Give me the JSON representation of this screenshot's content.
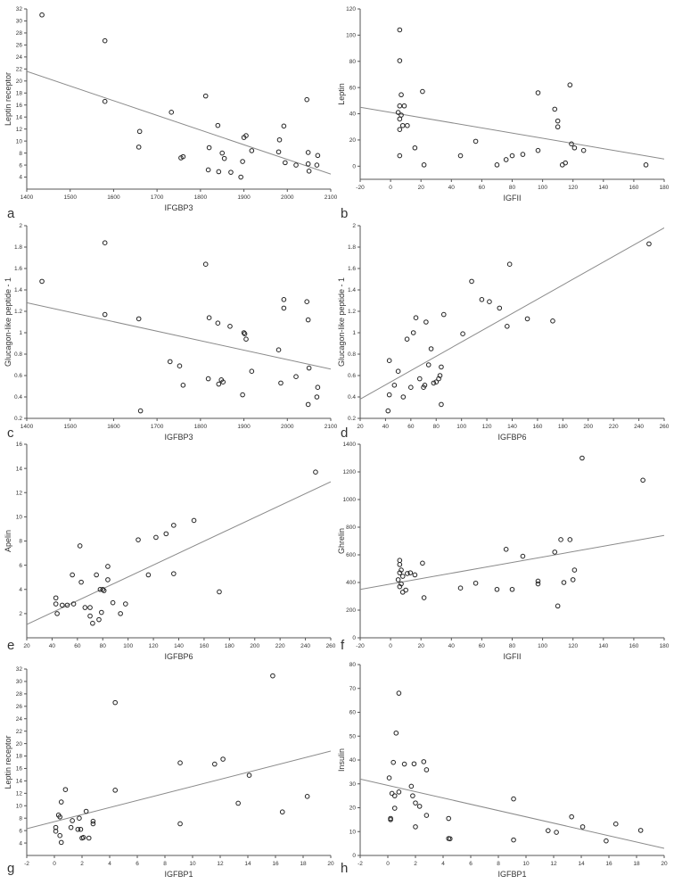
{
  "figure": {
    "colors": {
      "point_stroke": "#222222",
      "line": "#8a8a8a",
      "axis": "#555555",
      "text": "#333333"
    }
  },
  "chart_data": [
    {
      "panel": "a",
      "type": "scatter",
      "xlabel": "IFGBP3",
      "ylabel": "Leptin receptor",
      "xlim": [
        1400,
        2100
      ],
      "ylim": [
        2,
        32
      ],
      "xticks": [
        1400,
        1500,
        1600,
        1700,
        1800,
        1900,
        2000,
        2100
      ],
      "yticks": [
        4,
        6,
        8,
        10,
        12,
        14,
        16,
        18,
        20,
        22,
        24,
        26,
        28,
        30,
        32
      ],
      "fit_line": [
        [
          1400,
          21.6
        ],
        [
          2100,
          4.5
        ]
      ],
      "points": [
        [
          1435,
          31
        ],
        [
          1580,
          26.7
        ],
        [
          1580,
          16.6
        ],
        [
          1660,
          11.6
        ],
        [
          1658,
          9
        ],
        [
          1733,
          14.8
        ],
        [
          1755,
          7.2
        ],
        [
          1760,
          7.4
        ],
        [
          1812,
          17.5
        ],
        [
          1818,
          5.2
        ],
        [
          1820,
          8.9
        ],
        [
          1840,
          12.6
        ],
        [
          1842,
          4.9
        ],
        [
          1850,
          8
        ],
        [
          1855,
          7.1
        ],
        [
          1870,
          4.8
        ],
        [
          1893,
          4
        ],
        [
          1897,
          6.6
        ],
        [
          1900,
          10.6
        ],
        [
          1905,
          10.9
        ],
        [
          1918,
          8.4
        ],
        [
          1980,
          8.2
        ],
        [
          1982,
          10.2
        ],
        [
          1992,
          12.5
        ],
        [
          1995,
          6.4
        ],
        [
          2020,
          6
        ],
        [
          2045,
          16.9
        ],
        [
          2048,
          6.2
        ],
        [
          2048,
          8.1
        ],
        [
          2050,
          5
        ],
        [
          2068,
          6
        ],
        [
          2070,
          7.6
        ]
      ]
    },
    {
      "panel": "b",
      "type": "scatter",
      "xlabel": "IGFII",
      "ylabel": "Leptin",
      "xlim": [
        -20,
        180
      ],
      "ylim": [
        -10,
        120
      ],
      "xticks": [
        -20,
        0,
        20,
        40,
        60,
        80,
        100,
        120,
        140,
        160,
        180
      ],
      "yticks": [
        0,
        20,
        40,
        60,
        80,
        100,
        120
      ],
      "fit_line": [
        [
          -20,
          45
        ],
        [
          180,
          5.5
        ]
      ],
      "points": [
        [
          6,
          104
        ],
        [
          6,
          80.5
        ],
        [
          7,
          54.5
        ],
        [
          6,
          46
        ],
        [
          9,
          46
        ],
        [
          5,
          41
        ],
        [
          7,
          39
        ],
        [
          6,
          36
        ],
        [
          8,
          31
        ],
        [
          6,
          28
        ],
        [
          11,
          31
        ],
        [
          6,
          8
        ],
        [
          16,
          14
        ],
        [
          21,
          57
        ],
        [
          22,
          1
        ],
        [
          46,
          8
        ],
        [
          56,
          19
        ],
        [
          70,
          1
        ],
        [
          76,
          5
        ],
        [
          80,
          8
        ],
        [
          87,
          9
        ],
        [
          97,
          56
        ],
        [
          97,
          12
        ],
        [
          108,
          43.5
        ],
        [
          110,
          34.5
        ],
        [
          110,
          30
        ],
        [
          113,
          1
        ],
        [
          115,
          2.5
        ],
        [
          118,
          62
        ],
        [
          119,
          17
        ],
        [
          121,
          14
        ],
        [
          127,
          12
        ],
        [
          168,
          1
        ]
      ]
    },
    {
      "panel": "c",
      "type": "scatter",
      "xlabel": "IGFBP3",
      "ylabel": "Glucagon-like peptide - 1",
      "xlim": [
        1400,
        2100
      ],
      "ylim": [
        0.2,
        2.0
      ],
      "xticks": [
        1400,
        1500,
        1600,
        1700,
        1800,
        1900,
        2000,
        2100
      ],
      "yticks": [
        0.2,
        0.4,
        0.6,
        0.8,
        1.0,
        1.2,
        1.4,
        1.6,
        1.8,
        2.0
      ],
      "fit_line": [
        [
          1400,
          1.28
        ],
        [
          2100,
          0.66
        ]
      ],
      "points": [
        [
          1435,
          1.48
        ],
        [
          1580,
          1.84
        ],
        [
          1580,
          1.17
        ],
        [
          1658,
          1.13
        ],
        [
          1662,
          0.27
        ],
        [
          1730,
          0.73
        ],
        [
          1752,
          0.69
        ],
        [
          1760,
          0.51
        ],
        [
          1812,
          1.64
        ],
        [
          1818,
          0.57
        ],
        [
          1820,
          1.14
        ],
        [
          1840,
          1.09
        ],
        [
          1842,
          0.52
        ],
        [
          1848,
          0.56
        ],
        [
          1852,
          0.54
        ],
        [
          1868,
          1.06
        ],
        [
          1897,
          0.42
        ],
        [
          1900,
          1.0
        ],
        [
          1902,
          0.99
        ],
        [
          1905,
          0.94
        ],
        [
          1918,
          0.64
        ],
        [
          1980,
          0.84
        ],
        [
          1985,
          0.53
        ],
        [
          1992,
          1.31
        ],
        [
          1992,
          1.23
        ],
        [
          2020,
          0.59
        ],
        [
          2045,
          1.29
        ],
        [
          2048,
          1.12
        ],
        [
          2048,
          0.33
        ],
        [
          2050,
          0.67
        ],
        [
          2068,
          0.4
        ],
        [
          2070,
          0.49
        ]
      ]
    },
    {
      "panel": "d",
      "type": "scatter",
      "xlabel": "IGFBP6",
      "ylabel": "Glucagon-like peptide - 1",
      "xlim": [
        20,
        260
      ],
      "ylim": [
        0.2,
        2.0
      ],
      "xticks": [
        20,
        40,
        60,
        80,
        100,
        120,
        140,
        160,
        180,
        200,
        220,
        240,
        260
      ],
      "yticks": [
        0.2,
        0.4,
        0.6,
        0.8,
        1.0,
        1.2,
        1.4,
        1.6,
        1.8,
        2.0
      ],
      "fit_line": [
        [
          20,
          0.38
        ],
        [
          260,
          1.98
        ]
      ],
      "points": [
        [
          42,
          0.27
        ],
        [
          43,
          0.42
        ],
        [
          43,
          0.74
        ],
        [
          47,
          0.51
        ],
        [
          50,
          0.64
        ],
        [
          54,
          0.4
        ],
        [
          57,
          0.94
        ],
        [
          60,
          0.49
        ],
        [
          62,
          1.0
        ],
        [
          64,
          1.14
        ],
        [
          67,
          0.57
        ],
        [
          70,
          0.49
        ],
        [
          71,
          0.51
        ],
        [
          72,
          1.1
        ],
        [
          74,
          0.7
        ],
        [
          76,
          0.85
        ],
        [
          78,
          0.53
        ],
        [
          80,
          0.54
        ],
        [
          82,
          0.57
        ],
        [
          83,
          0.6
        ],
        [
          84,
          0.68
        ],
        [
          84,
          0.33
        ],
        [
          86,
          1.17
        ],
        [
          101,
          0.99
        ],
        [
          108,
          1.48
        ],
        [
          116,
          1.31
        ],
        [
          122,
          1.29
        ],
        [
          130,
          1.23
        ],
        [
          136,
          1.06
        ],
        [
          138,
          1.64
        ],
        [
          152,
          1.13
        ],
        [
          172,
          1.11
        ],
        [
          248,
          1.83
        ]
      ]
    },
    {
      "panel": "e",
      "type": "scatter",
      "xlabel": "IGFBP6",
      "ylabel": "Apelin",
      "xlim": [
        20,
        260
      ],
      "ylim": [
        0,
        16
      ],
      "xticks": [
        20,
        40,
        60,
        80,
        100,
        120,
        140,
        160,
        180,
        200,
        220,
        240,
        260
      ],
      "yticks": [
        2,
        4,
        6,
        8,
        10,
        12,
        14,
        16
      ],
      "fit_line": [
        [
          20,
          1.1
        ],
        [
          260,
          12.9
        ]
      ],
      "points": [
        [
          43,
          3.3
        ],
        [
          43,
          2.8
        ],
        [
          44,
          2.0
        ],
        [
          48,
          2.7
        ],
        [
          52,
          2.7
        ],
        [
          56,
          5.2
        ],
        [
          57,
          2.8
        ],
        [
          62,
          7.6
        ],
        [
          63,
          4.6
        ],
        [
          66,
          2.5
        ],
        [
          70,
          1.8
        ],
        [
          70,
          2.5
        ],
        [
          72,
          1.2
        ],
        [
          75,
          5.2
        ],
        [
          77,
          1.5
        ],
        [
          78,
          4.0
        ],
        [
          80,
          4.0
        ],
        [
          79,
          2.1
        ],
        [
          81,
          3.9
        ],
        [
          84,
          4.8
        ],
        [
          84,
          5.9
        ],
        [
          88,
          2.9
        ],
        [
          94,
          2.0
        ],
        [
          98,
          2.8
        ],
        [
          108,
          8.1
        ],
        [
          116,
          5.2
        ],
        [
          122,
          8.3
        ],
        [
          130,
          8.6
        ],
        [
          136,
          9.3
        ],
        [
          136,
          5.3
        ],
        [
          152,
          9.7
        ],
        [
          172,
          3.8
        ],
        [
          248,
          13.7
        ]
      ]
    },
    {
      "panel": "f",
      "type": "scatter",
      "xlabel": "IGFII",
      "ylabel": "Ghrelin",
      "xlim": [
        -20,
        180
      ],
      "ylim": [
        0,
        1400
      ],
      "xticks": [
        -20,
        0,
        20,
        40,
        60,
        80,
        100,
        120,
        140,
        160,
        180
      ],
      "yticks": [
        0,
        200,
        400,
        600,
        800,
        1000,
        1200,
        1400
      ],
      "fit_line": [
        [
          -20,
          350
        ],
        [
          180,
          740
        ]
      ],
      "points": [
        [
          6,
          560
        ],
        [
          6,
          530
        ],
        [
          7,
          490
        ],
        [
          6,
          470
        ],
        [
          8,
          445
        ],
        [
          5,
          420
        ],
        [
          7,
          390
        ],
        [
          6,
          370
        ],
        [
          8,
          330
        ],
        [
          10,
          345
        ],
        [
          11,
          465
        ],
        [
          13,
          470
        ],
        [
          16,
          455
        ],
        [
          21,
          540
        ],
        [
          22,
          290
        ],
        [
          46,
          360
        ],
        [
          56,
          395
        ],
        [
          70,
          350
        ],
        [
          76,
          640
        ],
        [
          80,
          350
        ],
        [
          87,
          590
        ],
        [
          97,
          390
        ],
        [
          97,
          410
        ],
        [
          108,
          620
        ],
        [
          110,
          230
        ],
        [
          112,
          710
        ],
        [
          114,
          400
        ],
        [
          118,
          710
        ],
        [
          120,
          420
        ],
        [
          121,
          490
        ],
        [
          126,
          1300
        ],
        [
          166,
          1140
        ]
      ]
    },
    {
      "panel": "g",
      "type": "scatter",
      "xlabel": "IGFBP1",
      "ylabel": "Leptin receptor",
      "xlim": [
        -2,
        20
      ],
      "ylim": [
        2,
        32
      ],
      "xticks": [
        -2,
        0,
        2,
        4,
        6,
        8,
        10,
        12,
        14,
        16,
        18,
        20
      ],
      "yticks": [
        4,
        6,
        8,
        10,
        12,
        14,
        16,
        18,
        20,
        22,
        24,
        26,
        28,
        30,
        32
      ],
      "fit_line": [
        [
          -2,
          6.3
        ],
        [
          20,
          18.8
        ]
      ],
      "points": [
        [
          0.1,
          6.5
        ],
        [
          0.1,
          5.9
        ],
        [
          0.3,
          8.5
        ],
        [
          0.4,
          8.2
        ],
        [
          0.4,
          5.2
        ],
        [
          0.5,
          10.6
        ],
        [
          0.5,
          4.1
        ],
        [
          0.8,
          12.6
        ],
        [
          1.2,
          6.5
        ],
        [
          1.3,
          7.6
        ],
        [
          1.7,
          6.2
        ],
        [
          1.8,
          8.0
        ],
        [
          1.9,
          6.2
        ],
        [
          2.0,
          4.8
        ],
        [
          2.1,
          4.9
        ],
        [
          2.3,
          9.1
        ],
        [
          2.5,
          4.8
        ],
        [
          2.8,
          7.5
        ],
        [
          2.8,
          7.1
        ],
        [
          4.4,
          26.6
        ],
        [
          4.4,
          12.5
        ],
        [
          9.1,
          16.9
        ],
        [
          9.1,
          7.1
        ],
        [
          11.6,
          16.7
        ],
        [
          12.2,
          17.5
        ],
        [
          13.3,
          10.4
        ],
        [
          14.1,
          14.9
        ],
        [
          15.8,
          30.9
        ],
        [
          16.5,
          9.0
        ],
        [
          18.3,
          11.5
        ]
      ]
    },
    {
      "panel": "h",
      "type": "scatter",
      "xlabel": "IGFBP1",
      "ylabel": "Insulin",
      "xlim": [
        -2,
        20
      ],
      "ylim": [
        0,
        80
      ],
      "xticks": [
        -2,
        0,
        2,
        4,
        6,
        8,
        10,
        12,
        14,
        16,
        18,
        20
      ],
      "yticks": [
        0,
        10,
        20,
        30,
        40,
        50,
        60,
        70,
        80
      ],
      "fit_line": [
        [
          -2,
          32
        ],
        [
          20,
          3
        ]
      ],
      "points": [
        [
          0.1,
          32.5
        ],
        [
          0.2,
          15.5
        ],
        [
          0.2,
          15
        ],
        [
          0.3,
          26
        ],
        [
          0.4,
          39
        ],
        [
          0.5,
          19.8
        ],
        [
          0.5,
          25
        ],
        [
          0.6,
          51.3
        ],
        [
          0.8,
          26.6
        ],
        [
          0.8,
          68
        ],
        [
          1.2,
          38.3
        ],
        [
          1.7,
          29
        ],
        [
          1.8,
          25
        ],
        [
          1.9,
          38.4
        ],
        [
          2.0,
          22
        ],
        [
          2.0,
          12
        ],
        [
          2.3,
          20.6
        ],
        [
          2.6,
          39.3
        ],
        [
          2.8,
          16.8
        ],
        [
          2.8,
          35.9
        ],
        [
          4.4,
          15.5
        ],
        [
          4.4,
          7.1
        ],
        [
          4.5,
          7.0
        ],
        [
          9.1,
          23.7
        ],
        [
          9.1,
          6.5
        ],
        [
          11.6,
          10.4
        ],
        [
          12.2,
          9.7
        ],
        [
          13.3,
          16.2
        ],
        [
          14.1,
          12
        ],
        [
          15.8,
          6.1
        ],
        [
          16.5,
          13.2
        ],
        [
          18.3,
          10.5
        ]
      ]
    }
  ]
}
